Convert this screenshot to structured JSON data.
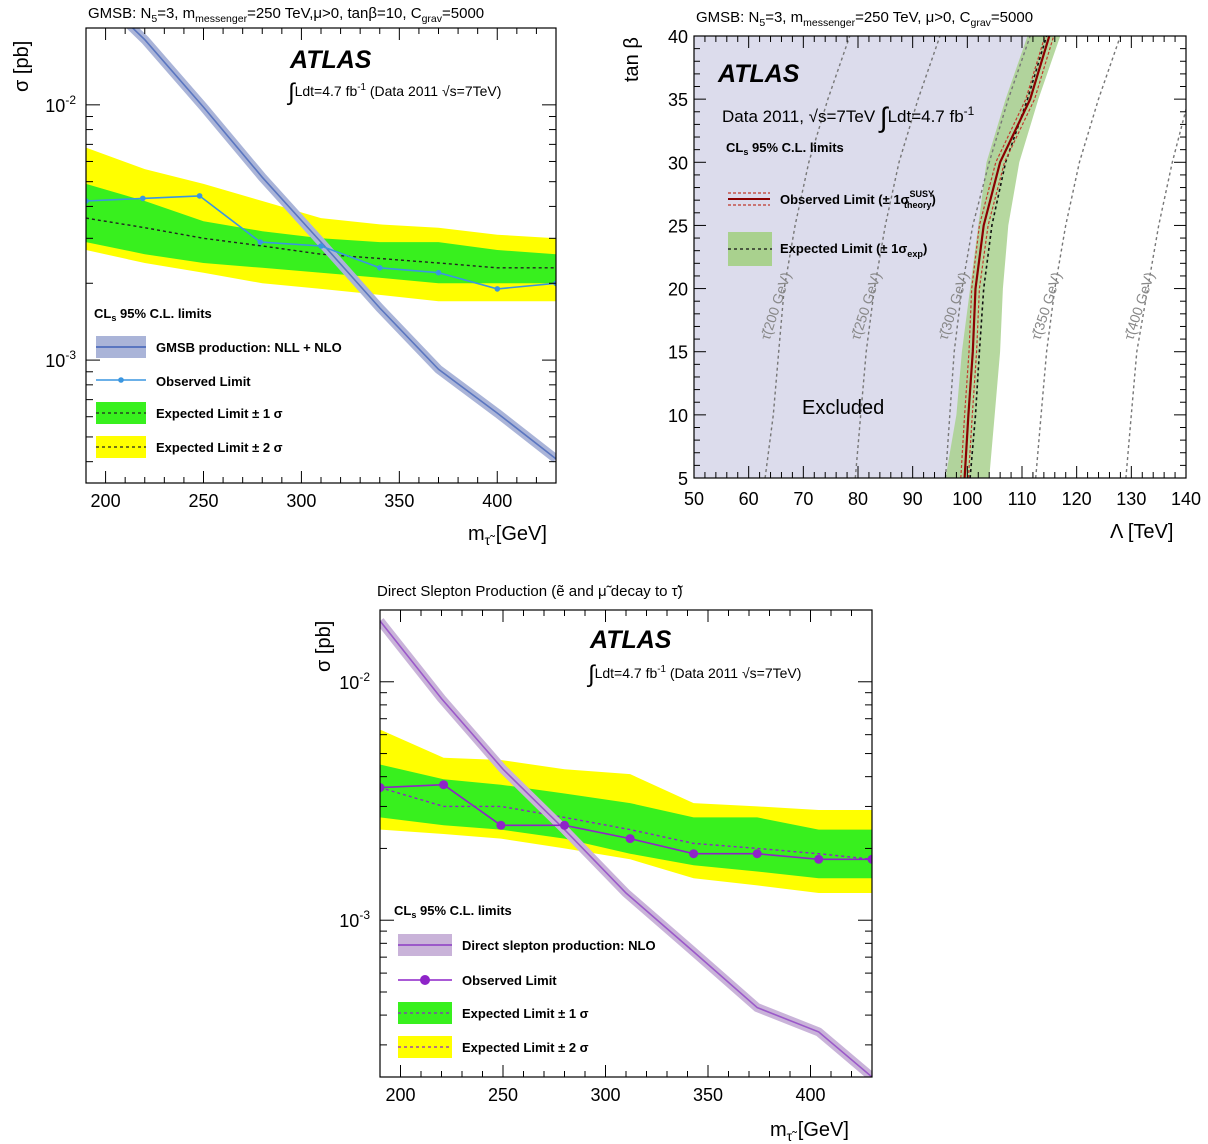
{
  "figure": {
    "colors": {
      "gmsb_band": "#aab4d8",
      "gmsb_line": "#5a76c0",
      "observed_blue": "#3a96e0",
      "green_1sigma": "#38f01e",
      "yellow_2sigma": "#ffff00",
      "excluded_fill": "#dcdcec",
      "obs_red": "#8b0000",
      "exp_band_green": "#a9d18e",
      "slepton_band": "#c9b3d9",
      "slepton_line": "#9b59c9",
      "observed_purple": "#8e24c8"
    }
  },
  "chart_data": [
    {
      "id": "gmsb_stau_xsec",
      "type": "line",
      "title": {
        "main": "GMSB: N",
        "t1": "5",
        "main2": "=3, m",
        "t2": "messenger",
        "main3": "=250 TeV,μ>0, tanβ=10, C",
        "t3": "grav",
        "main4": "=5000"
      },
      "y_axis_label": "σ [pb]",
      "x_axis_label": {
        "main": "m",
        "sub": "τ̃",
        "unit": " [GeV]"
      },
      "y_scale": "log",
      "xlim": [
        190,
        430
      ],
      "ylim": [
        0.00033,
        0.02
      ],
      "x_ticks": [
        200,
        250,
        300,
        350,
        400
      ],
      "y_tick_labels": [
        {
          "base": "10",
          "exp": "-2",
          "value": 0.01
        },
        {
          "base": "10",
          "exp": "-3",
          "value": 0.001
        }
      ],
      "atlas_label": "ATLAS",
      "lumi_label": {
        "a": "∫",
        "b": "Ldt=4.7 fb",
        "c": "-1",
        "d": " (Data 2011 ",
        "e": "√s",
        "f": "=7TeV)"
      },
      "legend_title": {
        "a": "CL",
        "b": "s",
        "c": " 95% C.L. limits"
      },
      "legend": [
        "GMSB production: NLL + NLO",
        "Observed Limit",
        "Expected Limit ± 1 σ",
        "Expected Limit ± 2 σ"
      ],
      "theory": {
        "name": "GMSB production: NLL + NLO",
        "x": [
          190,
          220,
          250,
          280,
          310,
          340,
          370,
          400,
          430
        ],
        "y": [
          0.03,
          0.018,
          0.0098,
          0.0052,
          0.0029,
          0.0016,
          0.00092,
          0.00062,
          0.00041
        ]
      },
      "observed": {
        "name": "Observed Limit",
        "x": [
          190,
          219,
          248,
          279,
          310,
          340,
          370,
          400,
          430
        ],
        "y": [
          0.0042,
          0.0043,
          0.0044,
          0.0029,
          0.0028,
          0.0023,
          0.0022,
          0.0019,
          0.002
        ]
      },
      "expected": {
        "x": [
          190,
          220,
          250,
          280,
          310,
          340,
          370,
          400,
          430
        ],
        "median": [
          0.0036,
          0.0033,
          0.003,
          0.0028,
          0.0026,
          0.0025,
          0.0024,
          0.0023,
          0.0023
        ],
        "one_sigma_lo": [
          0.0029,
          0.0026,
          0.0024,
          0.0023,
          0.0022,
          0.0021,
          0.002,
          0.002,
          0.002
        ],
        "one_sigma_hi": [
          0.0049,
          0.0042,
          0.0035,
          0.0032,
          0.003,
          0.0029,
          0.0029,
          0.0027,
          0.0026
        ],
        "two_sigma_lo": [
          0.0027,
          0.0024,
          0.0022,
          0.002,
          0.0019,
          0.0018,
          0.0017,
          0.0017,
          0.0017
        ],
        "two_sigma_hi": [
          0.0068,
          0.0056,
          0.0049,
          0.0042,
          0.0036,
          0.0034,
          0.0033,
          0.0031,
          0.003
        ]
      }
    },
    {
      "id": "gmsb_lambda_tanbeta",
      "type": "area",
      "title": {
        "main": "GMSB: N",
        "t1": "5",
        "main2": "=3, m",
        "t2": "messenger",
        "main3": "=250 TeV, μ>0, C",
        "t3": "grav",
        "main4": "=5000"
      },
      "x_axis_label": "Λ [TeV]",
      "y_axis_label": "tan β",
      "xlim": [
        50,
        140
      ],
      "ylim": [
        5,
        40
      ],
      "x_ticks": [
        50,
        60,
        70,
        80,
        90,
        100,
        110,
        120,
        130,
        140
      ],
      "y_ticks": [
        5,
        10,
        15,
        20,
        25,
        30,
        35,
        40
      ],
      "atlas_label": "ATLAS",
      "data_label": {
        "a": "Data 2011, ",
        "b": "√s",
        "c": "=7TeV ",
        "d": "∫",
        "e": "Ldt=4.7 fb",
        "f": "-1"
      },
      "cls_label": {
        "a": "CL",
        "b": "s",
        "c": " 95% C.L. limits"
      },
      "legend_observed": {
        "a": "Observed Limit (± 1σ",
        "b": "SUSY",
        "c": "theory",
        "d": ")"
      },
      "legend_expected": {
        "a": "Expected Limit (± 1σ",
        "b": "exp",
        "c": ")"
      },
      "excluded_label": "Excluded",
      "observed": {
        "tanb": [
          5,
          10,
          15,
          20,
          25,
          30,
          35,
          40
        ],
        "lambda": [
          99.5,
          100.2,
          101,
          101.5,
          103,
          106,
          111.5,
          115
        ],
        "theory_lo": [
          98.8,
          99.5,
          100.3,
          100.8,
          102.2,
          105.2,
          110.7,
          114.2
        ],
        "theory_hi": [
          100.2,
          100.9,
          101.7,
          102.2,
          103.8,
          106.8,
          112.3,
          115.8
        ]
      },
      "expected": {
        "tanb": [
          5,
          10,
          15,
          20,
          25,
          30,
          35,
          40
        ],
        "lambda": [
          100.5,
          101.5,
          102.2,
          103,
          104.5,
          107,
          111,
          114.5
        ],
        "band_lo": [
          96,
          98,
          99,
          100.5,
          102,
          103.5,
          107,
          111
        ],
        "band_hi": [
          104,
          105,
          106,
          106.5,
          107.5,
          109.5,
          113,
          117
        ]
      },
      "stau_contours": [
        {
          "label": "τ̃(200 GeV)",
          "tanb": [
            5,
            10,
            15,
            20,
            25,
            30,
            35,
            40
          ],
          "lambda": [
            63,
            64.5,
            65.5,
            66.5,
            68.5,
            71,
            74.5,
            78.5
          ]
        },
        {
          "label": "τ̃(250 GeV)",
          "tanb": [
            5,
            10,
            15,
            20,
            25,
            30,
            35,
            40
          ],
          "lambda": [
            79.5,
            80.5,
            81.5,
            83,
            85,
            87.5,
            91,
            95
          ]
        },
        {
          "label": "τ̃(300 GeV)",
          "tanb": [
            5,
            10,
            15,
            20,
            25,
            30,
            35,
            40
          ],
          "lambda": [
            96,
            96.8,
            97.6,
            99,
            101,
            104,
            107.5,
            111.5
          ]
        },
        {
          "label": "τ̃(350 GeV)",
          "tanb": [
            5,
            10,
            15,
            20,
            25,
            30,
            35,
            40
          ],
          "lambda": [
            112.5,
            113.5,
            114.5,
            116,
            118,
            120.5,
            124,
            128
          ]
        },
        {
          "label": "τ̃(400 GeV)",
          "tanb": [
            5,
            10,
            15,
            20,
            25,
            30,
            35,
            40
          ],
          "lambda": [
            129,
            130,
            131,
            133,
            135,
            137.5,
            140.5,
            144
          ]
        }
      ]
    },
    {
      "id": "direct_slepton_xsec",
      "type": "line",
      "title": {
        "main": "Direct Slepton Production (ẽ and μ̃ decay to τ̃)"
      },
      "y_axis_label": "σ [pb]",
      "x_axis_label": {
        "main": "m",
        "sub": "τ̃",
        "unit": " [GeV]"
      },
      "y_scale": "log",
      "xlim": [
        190,
        430
      ],
      "ylim": [
        0.00022,
        0.02
      ],
      "x_ticks": [
        200,
        250,
        300,
        350,
        400
      ],
      "y_tick_labels": [
        {
          "base": "10",
          "exp": "-2",
          "value": 0.01
        },
        {
          "base": "10",
          "exp": "-3",
          "value": 0.001
        }
      ],
      "atlas_label": "ATLAS",
      "lumi_label": {
        "a": "∫",
        "b": "Ldt=4.7 fb",
        "c": "-1",
        "d": " (Data 2011 ",
        "e": "√s",
        "f": "=7TeV)"
      },
      "legend_title": {
        "a": "CL",
        "b": "s",
        "c": " 95% C.L. limits"
      },
      "legend": [
        "Direct slepton production: NLO",
        "Observed Limit",
        "Expected Limit ± 1 σ",
        "Expected Limit ± 2 σ"
      ],
      "theory": {
        "name": "Direct slepton production: NLO",
        "x": [
          190,
          220,
          250,
          280,
          310,
          342,
          374,
          404,
          430
        ],
        "y": [
          0.018,
          0.0085,
          0.0043,
          0.0024,
          0.0013,
          0.00075,
          0.00043,
          0.00034,
          0.00022
        ]
      },
      "observed": {
        "name": "Observed Limit",
        "x": [
          190,
          221,
          249,
          280,
          312,
          343,
          374,
          404,
          430
        ],
        "y": [
          0.0036,
          0.0037,
          0.0025,
          0.0025,
          0.0022,
          0.0019,
          0.0019,
          0.0018,
          0.0018
        ]
      },
      "expected": {
        "x": [
          190,
          221,
          249,
          280,
          312,
          343,
          374,
          404,
          430
        ],
        "median": [
          0.0036,
          0.003,
          0.003,
          0.0027,
          0.0024,
          0.0021,
          0.002,
          0.0019,
          0.0018
        ],
        "one_sigma_lo": [
          0.0027,
          0.0025,
          0.0024,
          0.0022,
          0.0019,
          0.0017,
          0.0016,
          0.0015,
          0.0015
        ],
        "one_sigma_hi": [
          0.0045,
          0.0039,
          0.0037,
          0.0034,
          0.0031,
          0.0027,
          0.0027,
          0.0024,
          0.0024
        ],
        "two_sigma_lo": [
          0.0024,
          0.0023,
          0.0022,
          0.002,
          0.0018,
          0.0015,
          0.0014,
          0.0013,
          0.0013
        ],
        "two_sigma_hi": [
          0.0063,
          0.0048,
          0.0047,
          0.0043,
          0.0041,
          0.0031,
          0.003,
          0.0029,
          0.0029
        ]
      }
    }
  ]
}
